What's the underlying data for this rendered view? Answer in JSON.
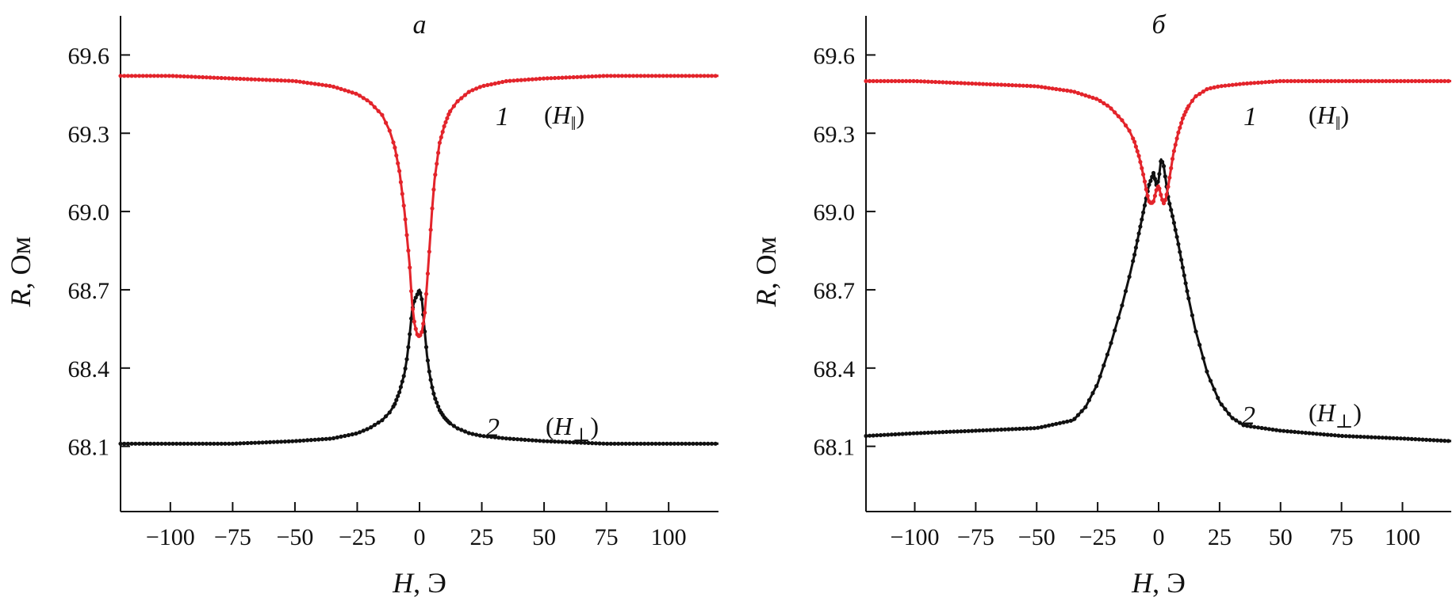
{
  "chart_data": [
    {
      "type": "scatter",
      "title": "а",
      "xlabel_var": "H",
      "xlabel_unit": ", Э",
      "ylabel_var": "R",
      "ylabel_unit": ", Ом",
      "xlim": [
        -120,
        120
      ],
      "ylim": [
        67.85,
        69.75
      ],
      "xticks": [
        -100,
        -75,
        -50,
        -25,
        0,
        25,
        50,
        75,
        100
      ],
      "xtick_labels": [
        "−100",
        "−75",
        "−50",
        "−25",
        "0",
        "25",
        "50",
        "75",
        "100"
      ],
      "yticks": [
        68.1,
        68.4,
        68.7,
        69.0,
        69.3,
        69.6
      ],
      "ytick_labels": [
        "68.1",
        "68.4",
        "68.7",
        "69.0",
        "69.3",
        "69.6"
      ],
      "series": [
        {
          "name": "1",
          "condition": "H",
          "condition_sub": "‖",
          "color": "#e3242b",
          "x": [
            -120,
            -100,
            -75,
            -50,
            -35,
            -25,
            -20,
            -15,
            -12,
            -10,
            -8,
            -6,
            -5,
            -4,
            -3,
            -2,
            -1,
            0,
            1,
            2,
            3,
            4,
            5,
            6,
            8,
            10,
            12,
            15,
            20,
            25,
            35,
            50,
            75,
            100,
            120
          ],
          "values": [
            69.52,
            69.52,
            69.51,
            69.5,
            69.48,
            69.45,
            69.42,
            69.37,
            69.31,
            69.25,
            69.15,
            69.0,
            68.9,
            68.8,
            68.65,
            68.57,
            68.53,
            68.52,
            68.54,
            68.6,
            68.72,
            68.86,
            69.0,
            69.12,
            69.26,
            69.33,
            69.38,
            69.42,
            69.46,
            69.48,
            69.5,
            69.51,
            69.52,
            69.52,
            69.52
          ]
        },
        {
          "name": "2",
          "condition": "H",
          "condition_sub": "⊥",
          "color": "#111111",
          "x": [
            -120,
            -100,
            -75,
            -50,
            -35,
            -25,
            -20,
            -15,
            -12,
            -10,
            -8,
            -6,
            -5,
            -4,
            -3,
            -2,
            -1,
            0,
            1,
            2,
            3,
            4,
            5,
            6,
            8,
            10,
            12,
            15,
            20,
            25,
            35,
            50,
            75,
            100,
            120
          ],
          "values": [
            68.11,
            68.11,
            68.11,
            68.12,
            68.13,
            68.15,
            68.17,
            68.2,
            68.23,
            68.26,
            68.31,
            68.38,
            68.44,
            68.52,
            68.62,
            68.66,
            68.68,
            68.7,
            68.66,
            68.55,
            68.45,
            68.38,
            68.33,
            68.29,
            68.24,
            68.21,
            68.19,
            68.17,
            68.15,
            68.14,
            68.13,
            68.12,
            68.11,
            68.11,
            68.11
          ]
        }
      ]
    },
    {
      "type": "scatter",
      "title": "б",
      "xlabel_var": "H",
      "xlabel_unit": ", Э",
      "ylabel_var": "R",
      "ylabel_unit": ", Ом",
      "xlim": [
        -120,
        120
      ],
      "ylim": [
        67.85,
        69.75
      ],
      "xticks": [
        -100,
        -75,
        -50,
        -25,
        0,
        25,
        50,
        75,
        100
      ],
      "xtick_labels": [
        "−100",
        "−75",
        "−50",
        "−25",
        "0",
        "25",
        "50",
        "75",
        "100"
      ],
      "yticks": [
        68.1,
        68.4,
        68.7,
        69.0,
        69.3,
        69.6
      ],
      "ytick_labels": [
        "68.1",
        "68.4",
        "68.7",
        "69.0",
        "69.3",
        "69.6"
      ],
      "series": [
        {
          "name": "1",
          "condition": "H",
          "condition_sub": "‖",
          "color": "#e3242b",
          "x": [
            -120,
            -100,
            -75,
            -50,
            -35,
            -25,
            -20,
            -15,
            -12,
            -10,
            -8,
            -6,
            -5,
            -4,
            -3,
            -2,
            -1,
            0,
            1,
            2,
            3,
            4,
            5,
            6,
            8,
            10,
            12,
            15,
            20,
            25,
            35,
            50,
            75,
            100,
            120
          ],
          "values": [
            69.5,
            69.5,
            69.49,
            69.48,
            69.46,
            69.43,
            69.4,
            69.35,
            69.31,
            69.27,
            69.21,
            69.13,
            69.08,
            69.04,
            69.03,
            69.04,
            69.08,
            69.1,
            69.06,
            69.03,
            69.05,
            69.1,
            69.16,
            69.22,
            69.3,
            69.36,
            69.4,
            69.44,
            69.47,
            69.48,
            69.49,
            69.5,
            69.5,
            69.5,
            69.5
          ]
        },
        {
          "name": "2",
          "condition": "H",
          "condition_sub": "⊥",
          "color": "#111111",
          "x": [
            -120,
            -100,
            -75,
            -50,
            -35,
            -30,
            -25,
            -20,
            -15,
            -12,
            -10,
            -8,
            -6,
            -4,
            -2,
            -1,
            0,
            1,
            2,
            4,
            6,
            8,
            10,
            12,
            15,
            20,
            25,
            30,
            35,
            50,
            75,
            100,
            120
          ],
          "values": [
            68.14,
            68.15,
            68.16,
            68.17,
            68.2,
            68.25,
            68.34,
            68.48,
            68.64,
            68.75,
            68.83,
            68.92,
            69.01,
            69.1,
            69.15,
            69.1,
            69.12,
            69.2,
            69.18,
            69.05,
            68.97,
            68.88,
            68.78,
            68.68,
            68.55,
            68.38,
            68.27,
            68.21,
            68.18,
            68.16,
            68.14,
            68.13,
            68.12
          ]
        }
      ]
    }
  ]
}
